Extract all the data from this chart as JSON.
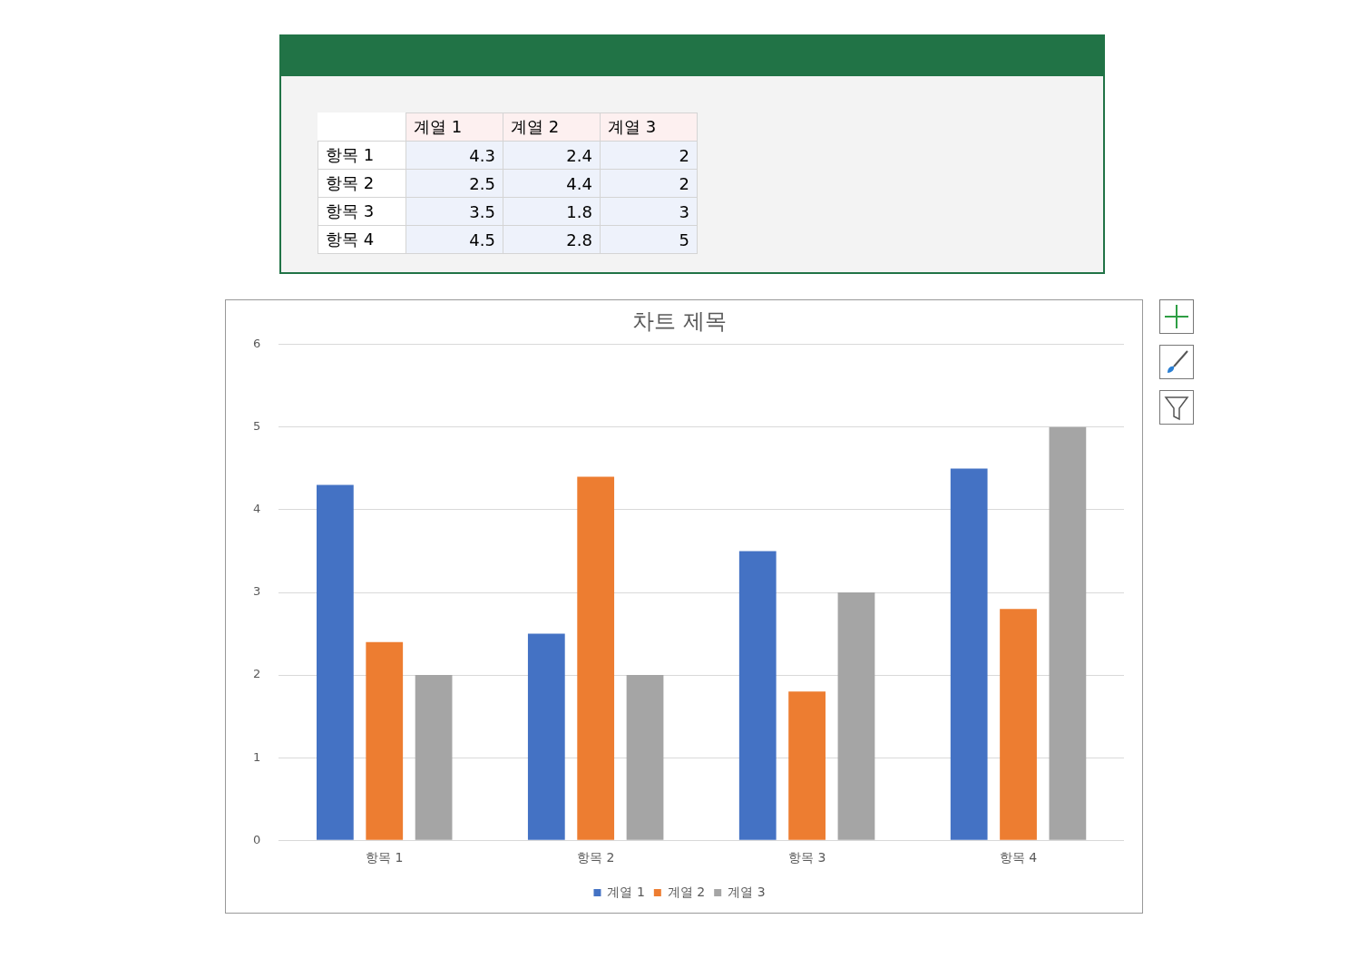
{
  "chart_data": [
    {
      "type": "other",
      "categories": [
        "항목 1",
        "항목 2",
        "항목 3",
        "항목 4"
      ],
      "series": [
        {
          "name": "계열 1",
          "values": [
            4.3,
            2.5,
            3.5,
            4.5
          ]
        },
        {
          "name": "계열 2",
          "values": [
            2.4,
            4.4,
            1.8,
            2.8
          ]
        },
        {
          "name": "계열 3",
          "values": [
            2,
            2,
            3,
            5
          ]
        }
      ],
      "data_labels": true
    },
    {
      "type": "bar",
      "title": "차트 제목",
      "categories": [
        "항목 1",
        "항목 2",
        "항목 3",
        "항목 4"
      ],
      "series": [
        {
          "name": "계열 1",
          "color": "#4472c4",
          "values": [
            4.3,
            2.5,
            3.5,
            4.5
          ]
        },
        {
          "name": "계열 2",
          "color": "#ed7d31",
          "values": [
            2.4,
            4.4,
            1.8,
            2.8
          ]
        },
        {
          "name": "계열 3",
          "color": "#a5a5a5",
          "values": [
            2,
            2,
            3,
            5
          ]
        }
      ],
      "ylim": [
        0,
        6
      ],
      "yticks": [
        0,
        1,
        2,
        3,
        4,
        5,
        6
      ],
      "grid": "y",
      "legend": "bottom"
    }
  ]
}
